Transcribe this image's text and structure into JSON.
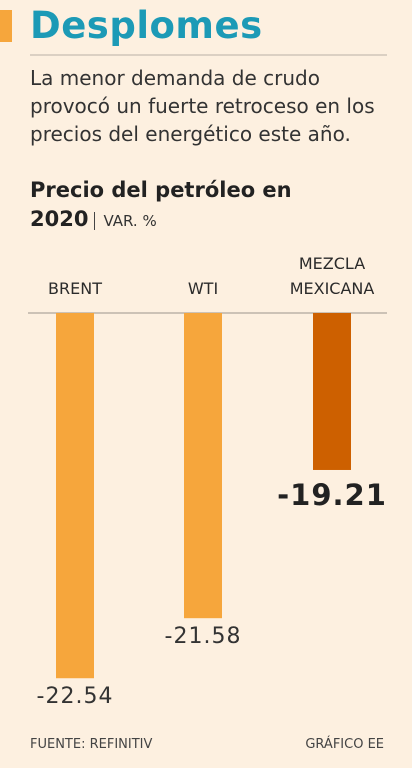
{
  "chart_data": {
    "type": "bar",
    "title": "Desplomes",
    "subtitle": "La menor demanda de crudo provocó un fuerte retroceso en los precios del energético este año.",
    "chart_title": "Precio del petróleo en 2020",
    "unit": "VAR. %",
    "categories": [
      "BRENT",
      "WTI",
      "MEZCLA MEXICANA"
    ],
    "values": [
      -22.54,
      -21.58,
      -19.21
    ],
    "colors": [
      "#f6a63c",
      "#f6a63c",
      "#cd6000"
    ],
    "ylim": [
      -23,
      -16.7
    ],
    "source": "FUENTE: REFINITIV",
    "credit": "GRÁFICO EE"
  }
}
